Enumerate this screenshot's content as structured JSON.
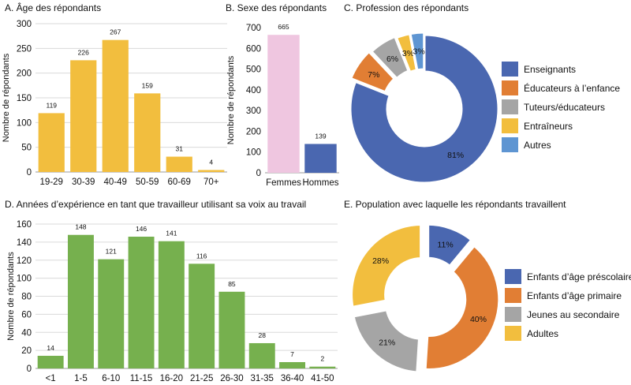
{
  "colors": {
    "gold": "#F2BE3E",
    "pink": "#EFC6E0",
    "blue": "#4A67B0",
    "orange": "#E17E34",
    "gray": "#A5A5A5",
    "lightblue": "#5E95D2",
    "green": "#76B04E",
    "grid": "#DADADA",
    "axis": "#999999",
    "text": "#111111"
  },
  "chart_data": [
    {
      "id": "A",
      "type": "bar",
      "title": "A. Âge des répondants",
      "ylabel": "Nombre de répondants",
      "xlabel": "",
      "categories": [
        "19-29",
        "30-39",
        "40-49",
        "50-59",
        "60-69",
        "70+"
      ],
      "values": [
        119,
        226,
        267,
        159,
        31,
        4
      ],
      "ylim": [
        0,
        300
      ],
      "yticks": [
        0,
        50,
        100,
        150,
        200,
        250,
        300
      ],
      "grid": true,
      "color": "#F2BE3E"
    },
    {
      "id": "B",
      "type": "bar",
      "title": "B. Sexe des répondants",
      "ylabel": "Nombre de répondants",
      "xlabel": "",
      "categories": [
        "Femmes",
        "Hommes"
      ],
      "values": [
        665,
        139
      ],
      "ylim": [
        0,
        700
      ],
      "yticks": [
        0,
        100,
        200,
        300,
        400,
        500,
        600,
        700
      ],
      "grid": false,
      "colors": [
        "#EFC6E0",
        "#4A67B0"
      ]
    },
    {
      "id": "C",
      "type": "pie",
      "title": "C. Profession des répondants",
      "categories": [
        "Enseignants",
        "Éducateurs à l’enfance",
        "Tuteurs/éducateurs",
        "Entraîneurs",
        "Autres"
      ],
      "values": [
        81,
        7,
        6,
        3,
        3
      ],
      "labels": [
        "81%",
        "7%",
        "6%",
        "3%",
        "3%"
      ],
      "colors": [
        "#4A67B0",
        "#E17E34",
        "#A5A5A5",
        "#F2BE3E",
        "#5E95D2"
      ],
      "legend": "right"
    },
    {
      "id": "D",
      "type": "bar",
      "title": "D. Années d’expérience en tant que travailleur utilisant sa voix au travail",
      "ylabel": "Nombre de répondants",
      "xlabel": "",
      "categories": [
        "<1",
        "1-5",
        "6-10",
        "11-15",
        "16-20",
        "21-25",
        "26-30",
        "31-35",
        "36-40",
        "41-50"
      ],
      "values": [
        14,
        148,
        121,
        146,
        141,
        116,
        85,
        28,
        7,
        2
      ],
      "ylim": [
        0,
        160
      ],
      "yticks": [
        0,
        20,
        40,
        60,
        80,
        100,
        120,
        140,
        160
      ],
      "grid": true,
      "color": "#76B04E"
    },
    {
      "id": "E",
      "type": "pie",
      "title": "E. Population avec laquelle les répondants travaillent",
      "categories": [
        "Enfants d’âge préscolaire",
        "Enfants d’âge primaire",
        "Jeunes au secondaire",
        "Adultes"
      ],
      "values": [
        11,
        40,
        21,
        28
      ],
      "labels": [
        "11%",
        "40%",
        "21%",
        "28%"
      ],
      "colors": [
        "#4A67B0",
        "#E17E34",
        "#A5A5A5",
        "#F2BE3E"
      ],
      "legend": "right"
    }
  ]
}
